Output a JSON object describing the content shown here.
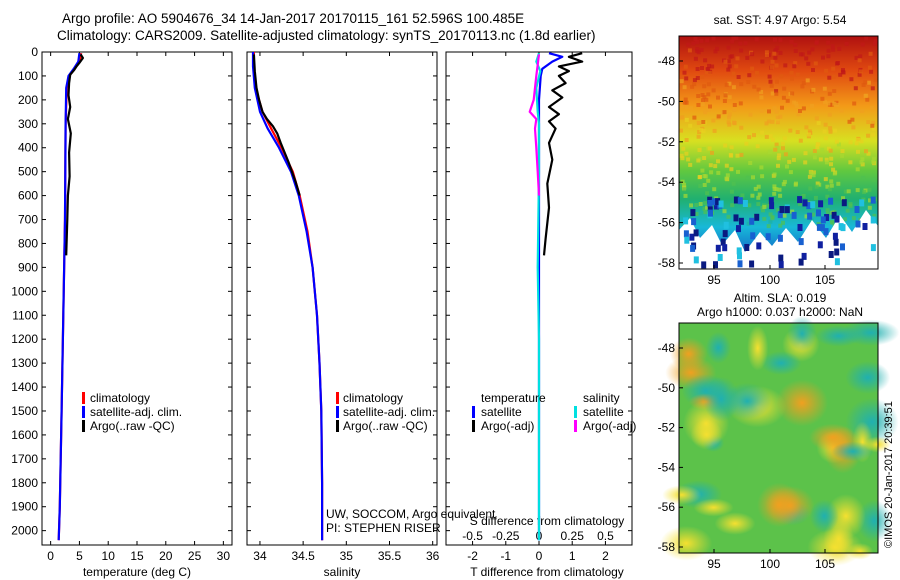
{
  "header": {
    "line1": "Argo profile: AO 5904676_34 14-Jan-2017 20170115_161 52.596S 100.485E",
    "line2": "Climatology: CARS2009. Satellite-adjusted climatology: synTS_20170113.nc (1.8d earlier)"
  },
  "colors": {
    "climatology": "#ff0000",
    "satellite": "#0000ff",
    "argo": "#000000",
    "s_satellite": "#00e0e0",
    "s_argo": "#ff00ff"
  },
  "chart_data": [
    {
      "type": "line",
      "id": "temperature",
      "xlabel": "temperature (deg C)",
      "ylabel": "",
      "xlim": [
        -1.5,
        31.5
      ],
      "ylim": [
        2060,
        0
      ],
      "xticks": [
        "0",
        "5",
        "10",
        "15",
        "20",
        "25",
        "30"
      ],
      "yticks": [
        "0",
        "100",
        "200",
        "300",
        "400",
        "500",
        "600",
        "700",
        "800",
        "900",
        "1000",
        "1100",
        "1200",
        "1300",
        "1400",
        "1500",
        "1600",
        "1700",
        "1800",
        "1900",
        "2000"
      ],
      "legend": [
        "climatology",
        "satellite-adj. clim.",
        "Argo(..raw -QC)"
      ],
      "series": [
        {
          "name": "climatology",
          "color": "#ff0000",
          "points": [
            [
              5.3,
              5
            ],
            [
              5.0,
              40
            ],
            [
              4.2,
              70
            ],
            [
              3.2,
              100
            ],
            [
              2.8,
              150
            ],
            [
              2.6,
              300
            ],
            [
              2.5,
              700
            ],
            [
              2.2,
              1100
            ],
            [
              1.9,
              1500
            ],
            [
              1.6,
              1900
            ],
            [
              1.4,
              2040
            ]
          ]
        },
        {
          "name": "satellite-adj. clim.",
          "color": "#0000ff",
          "points": [
            [
              5.0,
              5
            ],
            [
              4.8,
              40
            ],
            [
              4.0,
              70
            ],
            [
              3.1,
              100
            ],
            [
              2.7,
              150
            ],
            [
              2.6,
              300
            ],
            [
              2.5,
              700
            ],
            [
              2.2,
              1100
            ],
            [
              1.9,
              1500
            ],
            [
              1.6,
              1900
            ],
            [
              1.4,
              2040
            ]
          ]
        },
        {
          "name": "Argo(..raw -QC)",
          "color": "#000000",
          "points": [
            [
              5.2,
              10
            ],
            [
              5.6,
              25
            ],
            [
              5.0,
              45
            ],
            [
              4.5,
              60
            ],
            [
              4.1,
              75
            ],
            [
              3.4,
              95
            ],
            [
              3.2,
              130
            ],
            [
              3.1,
              180
            ],
            [
              3.4,
              230
            ],
            [
              3.0,
              280
            ],
            [
              3.5,
              340
            ],
            [
              3.2,
              420
            ],
            [
              3.3,
              520
            ],
            [
              3.0,
              600
            ],
            [
              2.9,
              700
            ],
            [
              2.7,
              850
            ]
          ]
        }
      ]
    },
    {
      "type": "line",
      "id": "salinity",
      "xlabel": "salinity",
      "xlim": [
        33.85,
        36.05
      ],
      "ylim": [
        2060,
        0
      ],
      "xticks": [
        "34",
        "34.5",
        "35",
        "35.5",
        "36"
      ],
      "legend": [
        "climatology",
        "satellite-adj. clim.",
        "Argo(..raw -QC)"
      ],
      "series": [
        {
          "name": "climatology",
          "color": "#ff0000",
          "points": [
            [
              33.93,
              0
            ],
            [
              33.93,
              60
            ],
            [
              33.95,
              150
            ],
            [
              34.03,
              250
            ],
            [
              34.13,
              320
            ],
            [
              34.25,
              400
            ],
            [
              34.38,
              500
            ],
            [
              34.46,
              600
            ],
            [
              34.55,
              750
            ],
            [
              34.61,
              900
            ],
            [
              34.66,
              1100
            ],
            [
              34.69,
              1300
            ],
            [
              34.71,
              1500
            ],
            [
              34.72,
              1800
            ],
            [
              34.72,
              2040
            ]
          ]
        },
        {
          "name": "satellite-adj. clim.",
          "color": "#0000ff",
          "points": [
            [
              33.92,
              0
            ],
            [
              33.92,
              60
            ],
            [
              33.94,
              150
            ],
            [
              34.0,
              250
            ],
            [
              34.09,
              320
            ],
            [
              34.22,
              400
            ],
            [
              34.36,
              500
            ],
            [
              34.45,
              600
            ],
            [
              34.54,
              750
            ],
            [
              34.61,
              900
            ],
            [
              34.66,
              1100
            ],
            [
              34.69,
              1300
            ],
            [
              34.71,
              1500
            ],
            [
              34.72,
              1800
            ],
            [
              34.72,
              2040
            ]
          ]
        },
        {
          "name": "Argo(..raw -QC)",
          "color": "#000000",
          "points": [
            [
              33.93,
              10
            ],
            [
              33.94,
              80
            ],
            [
              33.96,
              150
            ],
            [
              33.99,
              200
            ],
            [
              34.03,
              250
            ],
            [
              34.08,
              280
            ],
            [
              34.15,
              310
            ],
            [
              34.2,
              340
            ],
            [
              34.24,
              380
            ],
            [
              34.33,
              460
            ],
            [
              34.41,
              540
            ],
            [
              34.46,
              600
            ]
          ]
        }
      ]
    },
    {
      "type": "line",
      "id": "difference",
      "xlabel": "T difference from climatology",
      "xlabel_top": "S difference from climatology",
      "xlim": [
        -2.8,
        2.8
      ],
      "ylim": [
        2060,
        0
      ],
      "xticks": [
        "-2",
        "-1",
        "0",
        "1",
        "2"
      ],
      "xticks_top": [
        "-0.5",
        "-0.25",
        "0",
        "0.25",
        "0.5"
      ],
      "legend_titles": [
        "temperature",
        "salinity"
      ],
      "legend": [
        "satellite",
        "Argo(-adj)",
        "satellite",
        "Argo(-adj)"
      ],
      "series": [
        {
          "name": "T satellite",
          "color": "#0000ff",
          "points": [
            [
              0.3,
              5
            ],
            [
              0.7,
              20
            ],
            [
              0.4,
              40
            ],
            [
              0.1,
              70
            ],
            [
              0.05,
              100
            ],
            [
              0.0,
              200
            ],
            [
              0.0,
              500
            ],
            [
              0.0,
              1000
            ],
            [
              0.0,
              1500
            ],
            [
              0.0,
              2040
            ]
          ]
        },
        {
          "name": "T Argo(-adj)",
          "color": "#000000",
          "points": [
            [
              1.3,
              5
            ],
            [
              0.9,
              20
            ],
            [
              1.3,
              40
            ],
            [
              0.6,
              60
            ],
            [
              0.9,
              80
            ],
            [
              0.6,
              100
            ],
            [
              0.8,
              130
            ],
            [
              0.4,
              160
            ],
            [
              0.7,
              190
            ],
            [
              0.3,
              230
            ],
            [
              0.6,
              260
            ],
            [
              0.3,
              290
            ],
            [
              0.5,
              320
            ],
            [
              0.3,
              380
            ],
            [
              0.4,
              450
            ],
            [
              0.25,
              550
            ],
            [
              0.3,
              650
            ],
            [
              0.2,
              780
            ],
            [
              0.15,
              850
            ]
          ]
        },
        {
          "name": "S satellite",
          "color": "#00e0e0",
          "points": [
            [
              0.0,
              5
            ],
            [
              -0.02,
              40
            ],
            [
              0.01,
              80
            ],
            [
              -0.02,
              150
            ],
            [
              -0.01,
              250
            ],
            [
              0.0,
              300
            ],
            [
              0.0,
              500
            ],
            [
              -0.01,
              900
            ],
            [
              0.0,
              1200
            ],
            [
              0.0,
              1500
            ],
            [
              0.0,
              2040
            ]
          ]
        },
        {
          "name": "S Argo(-adj)",
          "color": "#ff00ff",
          "points": [
            [
              0.0,
              10
            ],
            [
              -0.02,
              100
            ],
            [
              -0.04,
              200
            ],
            [
              -0.07,
              250
            ],
            [
              -0.02,
              280
            ],
            [
              -0.03,
              320
            ],
            [
              -0.02,
              400
            ],
            [
              -0.01,
              500
            ],
            [
              0.0,
              600
            ]
          ]
        }
      ]
    },
    {
      "type": "heatmap",
      "id": "sst_map",
      "title": "sat. SST: 4.97 Argo: 5.54",
      "xticks": [
        "95",
        "100",
        "105"
      ],
      "yticks": [
        "-48",
        "-50",
        "-52",
        "-54",
        "-56",
        "-58"
      ]
    },
    {
      "type": "heatmap",
      "id": "sla_map",
      "title": "Altim. SLA: 0.019",
      "subtitle": "Argo h1000: 0.037 h2000: NaN",
      "xticks": [
        "95",
        "100",
        "105"
      ],
      "yticks": [
        "-48",
        "-50",
        "-52",
        "-54",
        "-56",
        "-58"
      ],
      "watermark": "©IMOS 20-Jan-2017 20:39:51"
    }
  ],
  "panel_notes": {
    "line1": "UW, SOCCOM, Argo equivalent",
    "line2": "PI: STEPHEN RISER"
  }
}
